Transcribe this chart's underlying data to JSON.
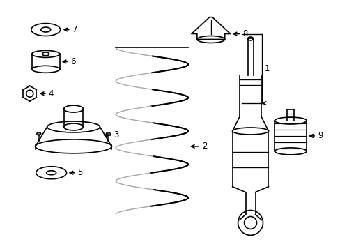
{
  "background_color": "#ffffff",
  "line_color": "#000000",
  "line_width": 1.2,
  "figsize": [
    4.89,
    3.6
  ],
  "dpi": 100
}
